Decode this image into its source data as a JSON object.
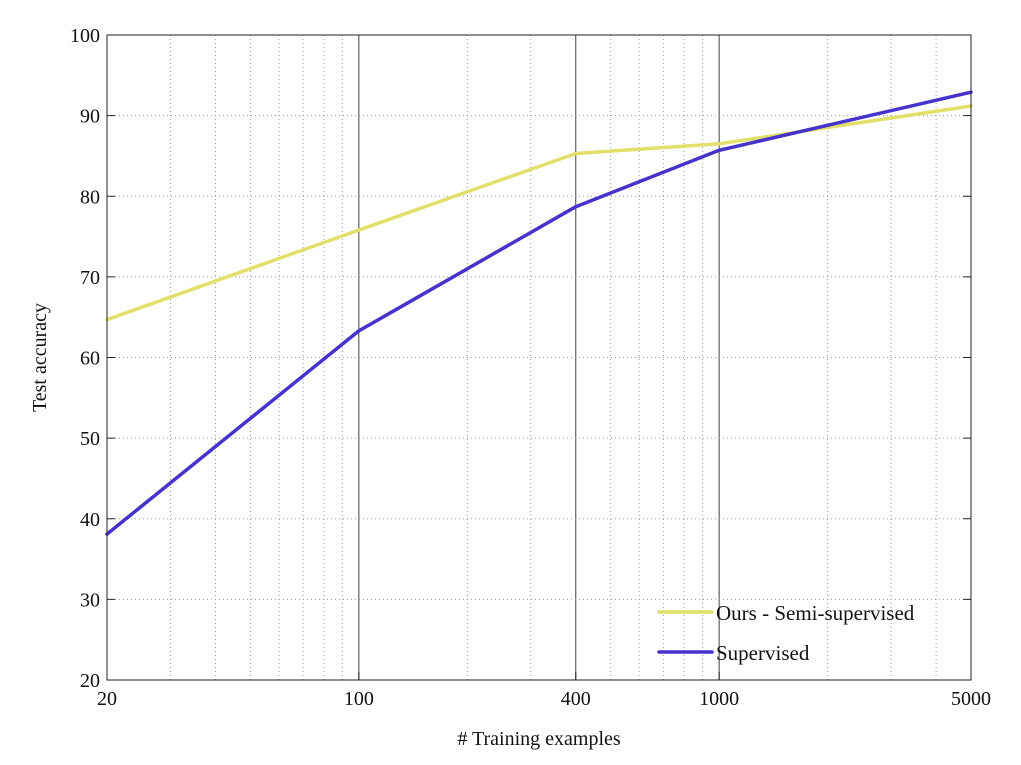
{
  "chart_data": {
    "type": "line",
    "title": "",
    "xlabel": "# Training examples",
    "ylabel": "Test accuracy",
    "x_scale": "log",
    "xlim": [
      20,
      5000
    ],
    "ylim": [
      20,
      100
    ],
    "x_ticks": [
      20,
      100,
      400,
      1000,
      5000
    ],
    "x_tick_labels": [
      "20",
      "100",
      "400",
      "1000",
      "5000"
    ],
    "y_ticks": [
      20,
      30,
      40,
      50,
      60,
      70,
      80,
      90,
      100
    ],
    "y_tick_labels": [
      "20",
      "30",
      "40",
      "50",
      "60",
      "70",
      "80",
      "90",
      "100"
    ],
    "grid": true,
    "legend_position": "bottom-right",
    "series": [
      {
        "name": "Ours - Semi-supervised",
        "color": "#e0e06b",
        "x": [
          20,
          100,
          400,
          1000,
          5000
        ],
        "values": [
          64.7,
          75.8,
          85.3,
          86.5,
          91.2
        ]
      },
      {
        "name": "Supervised",
        "color": "#4533cc",
        "x": [
          20,
          100,
          400,
          1000,
          5000
        ],
        "values": [
          38.1,
          63.3,
          78.7,
          85.7,
          92.9
        ]
      }
    ]
  }
}
